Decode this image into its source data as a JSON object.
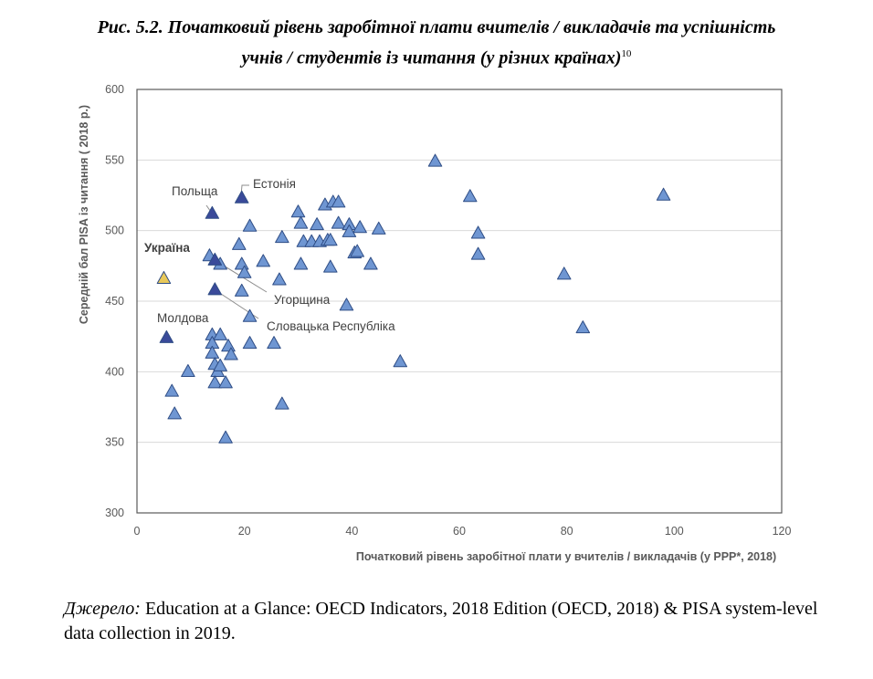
{
  "figure": {
    "title_line1": "Рис. 5.2. Початковий рівень заробітної плати вчителів / викладачів та успішність",
    "title_line2": "учнів / студентів із читання (у різних країнах)",
    "footnote_ref": "10",
    "source_label": "Джерело:",
    "source_text": "Education at a Glance: OECD Indicators, 2018 Edition (OECD, 2018) & PISA system-level data collection in 2019."
  },
  "colors": {
    "point_fill": "#6f96d2",
    "point_stroke": "#2f4d85",
    "labeled_fill": "#3a4a9a",
    "ukraine_fill": "#e8c85a",
    "grid": "#d9d9d9",
    "axis_text": "#595959",
    "label_text": "#404040"
  },
  "chart_data": {
    "type": "scatter",
    "xlabel": "Початковий рівень заробітної плати у вчителів / викладачів (у PPP*, 2018)",
    "ylabel": "Середній бал PISA із читання ( 2018 р.)",
    "xlim": [
      0,
      120
    ],
    "ylim": [
      300,
      600
    ],
    "xticks": [
      "0",
      "20",
      "40",
      "60",
      "80",
      "100",
      "120"
    ],
    "yticks": [
      "300",
      "350",
      "400",
      "450",
      "500",
      "550",
      "600"
    ],
    "grid": "horizontal",
    "legend": "none",
    "marker": "triangle",
    "points": [
      {
        "x": 55.5,
        "y": 549
      },
      {
        "x": 62,
        "y": 524
      },
      {
        "x": 98,
        "y": 525
      },
      {
        "x": 35,
        "y": 518
      },
      {
        "x": 36.5,
        "y": 520
      },
      {
        "x": 37.5,
        "y": 520
      },
      {
        "x": 30,
        "y": 513
      },
      {
        "x": 30.5,
        "y": 505
      },
      {
        "x": 33.5,
        "y": 504
      },
      {
        "x": 37.5,
        "y": 505
      },
      {
        "x": 39.5,
        "y": 504
      },
      {
        "x": 39.5,
        "y": 499
      },
      {
        "x": 41.5,
        "y": 502
      },
      {
        "x": 45,
        "y": 501
      },
      {
        "x": 63.5,
        "y": 498
      },
      {
        "x": 21,
        "y": 503
      },
      {
        "x": 27,
        "y": 495
      },
      {
        "x": 31,
        "y": 492
      },
      {
        "x": 32.5,
        "y": 492
      },
      {
        "x": 34,
        "y": 492
      },
      {
        "x": 35.5,
        "y": 493
      },
      {
        "x": 36,
        "y": 493
      },
      {
        "x": 19,
        "y": 490
      },
      {
        "x": 40.5,
        "y": 484
      },
      {
        "x": 41,
        "y": 485
      },
      {
        "x": 63.5,
        "y": 483
      },
      {
        "x": 13.5,
        "y": 482
      },
      {
        "x": 15.5,
        "y": 476
      },
      {
        "x": 19.5,
        "y": 476
      },
      {
        "x": 23.5,
        "y": 478
      },
      {
        "x": 30.5,
        "y": 476
      },
      {
        "x": 36,
        "y": 474
      },
      {
        "x": 43.5,
        "y": 476
      },
      {
        "x": 79.5,
        "y": 469
      },
      {
        "x": 20,
        "y": 470
      },
      {
        "x": 26.5,
        "y": 465
      },
      {
        "x": 19.5,
        "y": 457
      },
      {
        "x": 39,
        "y": 447
      },
      {
        "x": 21,
        "y": 439
      },
      {
        "x": 83,
        "y": 431
      },
      {
        "x": 14,
        "y": 426
      },
      {
        "x": 15.5,
        "y": 426
      },
      {
        "x": 14,
        "y": 420
      },
      {
        "x": 17,
        "y": 418
      },
      {
        "x": 21,
        "y": 420
      },
      {
        "x": 25.5,
        "y": 420
      },
      {
        "x": 14,
        "y": 413
      },
      {
        "x": 17.5,
        "y": 412
      },
      {
        "x": 14.5,
        "y": 405
      },
      {
        "x": 15,
        "y": 400
      },
      {
        "x": 15.5,
        "y": 404
      },
      {
        "x": 9.5,
        "y": 400
      },
      {
        "x": 49,
        "y": 407
      },
      {
        "x": 14.5,
        "y": 392
      },
      {
        "x": 16.5,
        "y": 392
      },
      {
        "x": 6.5,
        "y": 386
      },
      {
        "x": 27,
        "y": 377
      },
      {
        "x": 7,
        "y": 370
      },
      {
        "x": 16.5,
        "y": 353
      }
    ],
    "labeled_points": [
      {
        "name": "Польща",
        "x": 14,
        "y": 512,
        "style": "dark"
      },
      {
        "name": "Естонія",
        "x": 19.5,
        "y": 523,
        "style": "dark"
      },
      {
        "name": "Україна",
        "x": 5,
        "y": 466,
        "style": "ukraine"
      },
      {
        "name": "Угорщина",
        "x": 14.5,
        "y": 479,
        "style": "dark"
      },
      {
        "name": "Словацька Республіка",
        "x": 14.5,
        "y": 458,
        "style": "dark"
      },
      {
        "name": "Молдова",
        "x": 5.5,
        "y": 424,
        "style": "dark"
      }
    ]
  }
}
